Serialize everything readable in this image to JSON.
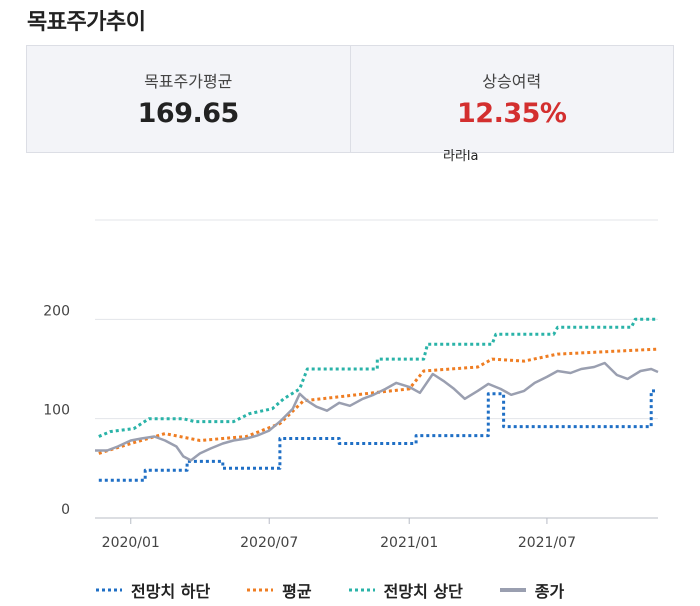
{
  "header": {
    "title": "목표주가추이"
  },
  "summary": {
    "avg_label": "목표주가평균",
    "avg_value": "169.65",
    "upside_label": "상승여력",
    "upside_value": "12.35%",
    "stray_text": "라라la"
  },
  "colors": {
    "low": "#1f6fc5",
    "avg": "#ef7d22",
    "high": "#2ab3a8",
    "close": "#9a9fb0",
    "upside": "#d32f2f",
    "grid": "#e3e5ea"
  },
  "chart_data": {
    "type": "line",
    "title": "",
    "xlabel": "",
    "ylabel": "",
    "ylim": [
      0,
      300
    ],
    "yticks": [
      0,
      100,
      200
    ],
    "xlim": [
      "2019-11-15",
      "2021-11-24"
    ],
    "xticks": [
      "2020/01",
      "2020/07",
      "2021/01",
      "2021/07"
    ],
    "grid": true,
    "legend_position": "bottom",
    "series": [
      {
        "name": "전망치 하단",
        "style": "dotted",
        "color": "#1f6fc5",
        "points": [
          [
            "2019-11-20",
            38
          ],
          [
            "2020-01-20",
            38
          ],
          [
            "2020-01-20",
            48
          ],
          [
            "2020-03-15",
            48
          ],
          [
            "2020-03-15",
            57
          ],
          [
            "2020-05-01",
            57
          ],
          [
            "2020-05-01",
            50
          ],
          [
            "2020-07-15",
            50
          ],
          [
            "2020-07-15",
            80
          ],
          [
            "2020-10-01",
            80
          ],
          [
            "2020-10-01",
            75
          ],
          [
            "2021-01-10",
            75
          ],
          [
            "2021-01-10",
            83
          ],
          [
            "2021-04-15",
            83
          ],
          [
            "2021-04-15",
            125
          ],
          [
            "2021-05-05",
            125
          ],
          [
            "2021-05-05",
            92
          ],
          [
            "2021-11-15",
            92
          ],
          [
            "2021-11-15",
            128
          ],
          [
            "2021-11-24",
            128
          ]
        ]
      },
      {
        "name": "평균",
        "style": "dotted",
        "color": "#ef7d22",
        "points": [
          [
            "2019-11-20",
            65
          ],
          [
            "2020-01-01",
            75
          ],
          [
            "2020-02-15",
            85
          ],
          [
            "2020-04-01",
            78
          ],
          [
            "2020-06-01",
            82
          ],
          [
            "2020-07-15",
            95
          ],
          [
            "2020-08-15",
            118
          ],
          [
            "2020-10-01",
            122
          ],
          [
            "2020-11-15",
            126
          ],
          [
            "2021-01-01",
            130
          ],
          [
            "2021-01-20",
            148
          ],
          [
            "2021-04-01",
            152
          ],
          [
            "2021-04-20",
            160
          ],
          [
            "2021-06-01",
            158
          ],
          [
            "2021-07-15",
            165
          ],
          [
            "2021-11-24",
            170
          ]
        ]
      },
      {
        "name": "전망치 상단",
        "style": "dotted",
        "color": "#2ab3a8",
        "points": [
          [
            "2019-11-20",
            82
          ],
          [
            "2019-12-05",
            87
          ],
          [
            "2020-01-05",
            90
          ],
          [
            "2020-01-25",
            100
          ],
          [
            "2020-03-10",
            100
          ],
          [
            "2020-03-25",
            97
          ],
          [
            "2020-05-15",
            97
          ],
          [
            "2020-06-05",
            105
          ],
          [
            "2020-07-05",
            110
          ],
          [
            "2020-07-20",
            120
          ],
          [
            "2020-08-10",
            130
          ],
          [
            "2020-08-20",
            150
          ],
          [
            "2020-11-20",
            150
          ],
          [
            "2020-11-20",
            160
          ],
          [
            "2021-01-20",
            160
          ],
          [
            "2021-01-25",
            175
          ],
          [
            "2021-04-20",
            175
          ],
          [
            "2021-04-25",
            185
          ],
          [
            "2021-07-10",
            185
          ],
          [
            "2021-07-15",
            192
          ],
          [
            "2021-10-20",
            192
          ],
          [
            "2021-10-25",
            200
          ],
          [
            "2021-11-24",
            200
          ]
        ]
      },
      {
        "name": "종가",
        "style": "solid",
        "color": "#9a9fb0",
        "points": [
          [
            "2019-11-15",
            68
          ],
          [
            "2019-12-01",
            68
          ],
          [
            "2019-12-15",
            72
          ],
          [
            "2020-01-01",
            78
          ],
          [
            "2020-01-15",
            80
          ],
          [
            "2020-02-01",
            82
          ],
          [
            "2020-02-15",
            78
          ],
          [
            "2020-03-01",
            72
          ],
          [
            "2020-03-10",
            62
          ],
          [
            "2020-03-20",
            58
          ],
          [
            "2020-04-01",
            65
          ],
          [
            "2020-04-15",
            70
          ],
          [
            "2020-05-01",
            75
          ],
          [
            "2020-05-15",
            78
          ],
          [
            "2020-06-01",
            80
          ],
          [
            "2020-06-15",
            83
          ],
          [
            "2020-07-01",
            88
          ],
          [
            "2020-07-15",
            97
          ],
          [
            "2020-08-01",
            110
          ],
          [
            "2020-08-10",
            125
          ],
          [
            "2020-08-20",
            118
          ],
          [
            "2020-09-01",
            112
          ],
          [
            "2020-09-15",
            108
          ],
          [
            "2020-10-01",
            116
          ],
          [
            "2020-10-15",
            113
          ],
          [
            "2020-11-01",
            120
          ],
          [
            "2020-11-15",
            124
          ],
          [
            "2020-12-01",
            130
          ],
          [
            "2020-12-15",
            136
          ],
          [
            "2021-01-01",
            132
          ],
          [
            "2021-01-15",
            126
          ],
          [
            "2021-02-01",
            145
          ],
          [
            "2021-02-15",
            138
          ],
          [
            "2021-03-01",
            130
          ],
          [
            "2021-03-15",
            120
          ],
          [
            "2021-04-01",
            128
          ],
          [
            "2021-04-15",
            135
          ],
          [
            "2021-05-01",
            130
          ],
          [
            "2021-05-15",
            124
          ],
          [
            "2021-06-01",
            128
          ],
          [
            "2021-06-15",
            136
          ],
          [
            "2021-07-01",
            142
          ],
          [
            "2021-07-15",
            148
          ],
          [
            "2021-08-01",
            146
          ],
          [
            "2021-08-15",
            150
          ],
          [
            "2021-09-01",
            152
          ],
          [
            "2021-09-15",
            156
          ],
          [
            "2021-10-01",
            144
          ],
          [
            "2021-10-15",
            140
          ],
          [
            "2021-11-01",
            148
          ],
          [
            "2021-11-15",
            150
          ],
          [
            "2021-11-24",
            147
          ]
        ]
      }
    ]
  }
}
